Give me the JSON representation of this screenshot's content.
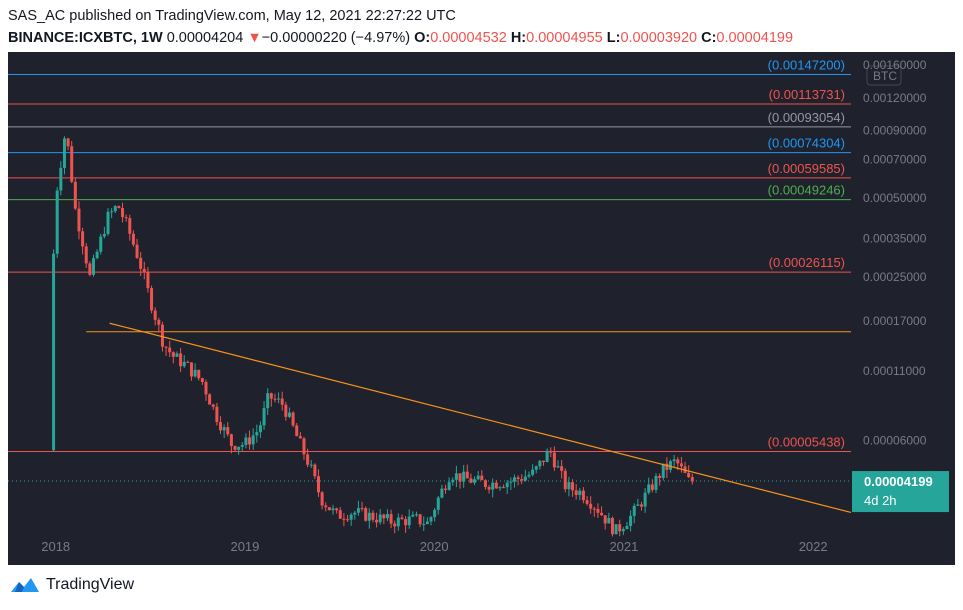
{
  "header": {
    "line1": "SAS_AC published on TradingView.com, May 12, 2021 22:27:22 UTC",
    "symbol": "BINANCE:ICXBTC, 1W",
    "last": "0.00004204",
    "change_arrow": "▼",
    "change": "−0.00000220 (−4.97%)",
    "o_label": "O:",
    "o_value": "0.00004532",
    "h_label": "H:",
    "h_value": "0.00004955",
    "l_label": "L:",
    "l_value": "0.00003920",
    "c_label": "C:",
    "c_value": "0.00004199"
  },
  "footer": {
    "brand": "TradingView"
  },
  "colors": {
    "background": "#1f222c",
    "up": "#26a69a",
    "down": "#ef5350",
    "trendline": "#f7931a",
    "level_red": "#ef5350",
    "level_blue": "#2196f3",
    "level_gray": "#9598a1",
    "level_green": "#4caf50",
    "price_badge": "#26a69a"
  },
  "chart_data": {
    "type": "candlestick",
    "title": "",
    "y_axis_currency": "BTC",
    "y_scale": "log",
    "ylim": [
      2.4e-05,
      0.0017
    ],
    "xlim": [
      "2017-10-01",
      "2022-03-15"
    ],
    "y_ticks": [
      {
        "label": "0.00160000",
        "value": 0.0016
      },
      {
        "label": "0.00120000",
        "value": 0.0012
      },
      {
        "label": "0.00090000",
        "value": 0.0009
      },
      {
        "label": "0.00070000",
        "value": 0.0007
      },
      {
        "label": "0.00050000",
        "value": 0.0005
      },
      {
        "label": "0.00035000",
        "value": 0.00035
      },
      {
        "label": "0.00025000",
        "value": 0.00025
      },
      {
        "label": "0.00017000",
        "value": 0.00017
      },
      {
        "label": "0.00011000",
        "value": 0.00011
      },
      {
        "label": "0.00006000",
        "value": 6e-05
      }
    ],
    "x_ticks": [
      {
        "label": "2018",
        "date": "2018-01-01"
      },
      {
        "label": "2019",
        "date": "2019-01-01"
      },
      {
        "label": "2020",
        "date": "2020-01-01"
      },
      {
        "label": "2021",
        "date": "2021-01-01"
      },
      {
        "label": "2022",
        "date": "2022-01-01"
      }
    ],
    "levels": [
      {
        "label": "(0.00147200)",
        "value": 0.001472,
        "color": "#2196f3",
        "start": "2017-10-01"
      },
      {
        "label": "(0.00113731)",
        "value": 0.00113731,
        "color": "#ef5350",
        "start": "2017-10-01"
      },
      {
        "label": "(0.00093054)",
        "value": 0.00093054,
        "color": "#9598a1",
        "start": "2017-10-01"
      },
      {
        "label": "(0.00074304)",
        "value": 0.00074304,
        "color": "#2196f3",
        "start": "2017-10-01"
      },
      {
        "label": "(0.00059585)",
        "value": 0.00059585,
        "color": "#ef5350",
        "start": "2017-10-01"
      },
      {
        "label": "(0.00049246)",
        "value": 0.00049246,
        "color": "#4caf50",
        "start": "2017-10-01"
      },
      {
        "label": "(0.00026115)",
        "value": 0.00026115,
        "color": "#ef5350",
        "start": "2017-10-01"
      },
      {
        "label": "",
        "value": 0.000155,
        "color": "#f7931a",
        "start": "2018-03-01"
      },
      {
        "label": "(0.00005438)",
        "value": 5.438e-05,
        "color": "#ef5350",
        "start": "2017-10-01"
      }
    ],
    "trendline": {
      "from": {
        "date": "2018-04-15",
        "value": 0.000167
      },
      "to": {
        "date": "2022-03-15",
        "value": 3.19e-05
      },
      "color": "#f7931a"
    },
    "last_price": {
      "value": 4.199e-05,
      "label": "0.00004199",
      "countdown": "4d 2h"
    },
    "price_path": [
      [
        "2017-12-25",
        5.5e-05
      ],
      [
        "2017-12-30",
        0.00026
      ],
      [
        "2018-01-08",
        0.00055
      ],
      [
        "2018-01-22",
        0.00085
      ],
      [
        "2018-01-31",
        0.00075
      ],
      [
        "2018-02-10",
        0.00047
      ],
      [
        "2018-02-25",
        0.00035
      ],
      [
        "2018-03-12",
        0.00025
      ],
      [
        "2018-03-28",
        0.00032
      ],
      [
        "2018-04-15",
        0.00042
      ],
      [
        "2018-05-05",
        0.00047
      ],
      [
        "2018-05-25",
        0.00038
      ],
      [
        "2018-06-15",
        0.00029
      ],
      [
        "2018-07-05",
        0.00021
      ],
      [
        "2018-08-01",
        0.00014
      ],
      [
        "2018-08-20",
        0.000125
      ],
      [
        "2018-09-15",
        0.000115
      ],
      [
        "2018-10-15",
        0.0001
      ],
      [
        "2018-11-10",
        7.5e-05
      ],
      [
        "2018-12-10",
        5.8e-05
      ],
      [
        "2019-01-05",
        5.8e-05
      ],
      [
        "2019-02-01",
        6.6e-05
      ],
      [
        "2019-02-20",
        8.8e-05
      ],
      [
        "2019-03-20",
        8.2e-05
      ],
      [
        "2019-04-15",
        6.2e-05
      ],
      [
        "2019-05-10",
        4.8e-05
      ],
      [
        "2019-06-01",
        3.6e-05
      ],
      [
        "2019-07-01",
        3.1e-05
      ],
      [
        "2019-08-01",
        3.2e-05
      ],
      [
        "2019-09-01",
        3.1e-05
      ],
      [
        "2019-10-15",
        2.95e-05
      ],
      [
        "2019-12-01",
        3e-05
      ],
      [
        "2019-12-25",
        2.9e-05
      ],
      [
        "2020-01-10",
        3.5e-05
      ],
      [
        "2020-02-05",
        4.5e-05
      ],
      [
        "2020-03-01",
        4.3e-05
      ],
      [
        "2020-04-15",
        4.1e-05
      ],
      [
        "2020-06-01",
        4.2e-05
      ],
      [
        "2020-07-15",
        4.5e-05
      ],
      [
        "2020-08-15",
        5.5e-05
      ],
      [
        "2020-09-15",
        4e-05
      ],
      [
        "2020-10-15",
        3.8e-05
      ],
      [
        "2020-11-15",
        3.3e-05
      ],
      [
        "2020-12-20",
        2.7e-05
      ],
      [
        "2021-01-20",
        3.1e-05
      ],
      [
        "2021-02-20",
        3.8e-05
      ],
      [
        "2021-03-20",
        4.6e-05
      ],
      [
        "2021-04-15",
        5e-05
      ],
      [
        "2021-05-10",
        4.2e-05
      ]
    ]
  }
}
